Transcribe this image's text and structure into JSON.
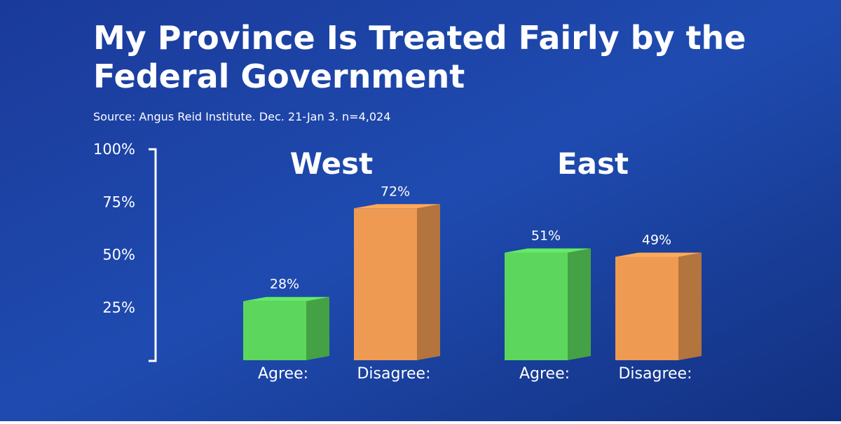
{
  "chart_data": {
    "type": "bar3d",
    "title": [
      "My Province Is Treated Fairly by the",
      "Federal Government"
    ],
    "subtitle": "Source: Angus Reid Institute. Dec. 21-Jan 3. n=4,024",
    "categories": [
      "West",
      "East"
    ],
    "series": [
      {
        "name": "Agree:",
        "color": "#5cd65c",
        "values": [
          28,
          51
        ],
        "value_labels": [
          "28%",
          "51%"
        ]
      },
      {
        "name": "Disagree:",
        "color": "#ee9a52",
        "values": [
          72,
          49
        ],
        "value_labels": [
          "72%",
          "49%"
        ]
      }
    ],
    "ylim": [
      0,
      100
    ],
    "yticks": [
      {
        "value": 25,
        "label": "25%"
      },
      {
        "value": 50,
        "label": "50%"
      },
      {
        "value": 75,
        "label": "75%"
      },
      {
        "value": 100,
        "label": "100%"
      }
    ]
  }
}
